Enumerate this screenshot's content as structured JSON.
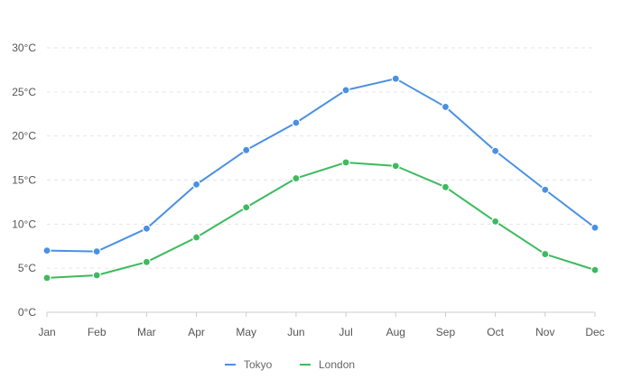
{
  "chart_data": {
    "type": "line",
    "categories": [
      "Jan",
      "Feb",
      "Mar",
      "Apr",
      "May",
      "Jun",
      "Jul",
      "Aug",
      "Sep",
      "Oct",
      "Nov",
      "Dec"
    ],
    "series": [
      {
        "name": "Tokyo",
        "color": "#4a90e2",
        "values": [
          7.0,
          6.9,
          9.5,
          14.5,
          18.4,
          21.5,
          25.2,
          26.5,
          23.3,
          18.3,
          13.9,
          9.6
        ]
      },
      {
        "name": "London",
        "color": "#3dba5f",
        "values": [
          3.9,
          4.2,
          5.7,
          8.5,
          11.9,
          15.2,
          17.0,
          16.6,
          14.2,
          10.3,
          6.6,
          4.8
        ]
      }
    ],
    "y_ticks": [
      "0°C",
      "5°C",
      "10°C",
      "15°C",
      "20°C",
      "25°C",
      "30°C"
    ],
    "ylim": [
      0,
      30
    ],
    "y_tick_step": 5,
    "grid": true,
    "legend": "bottom"
  }
}
